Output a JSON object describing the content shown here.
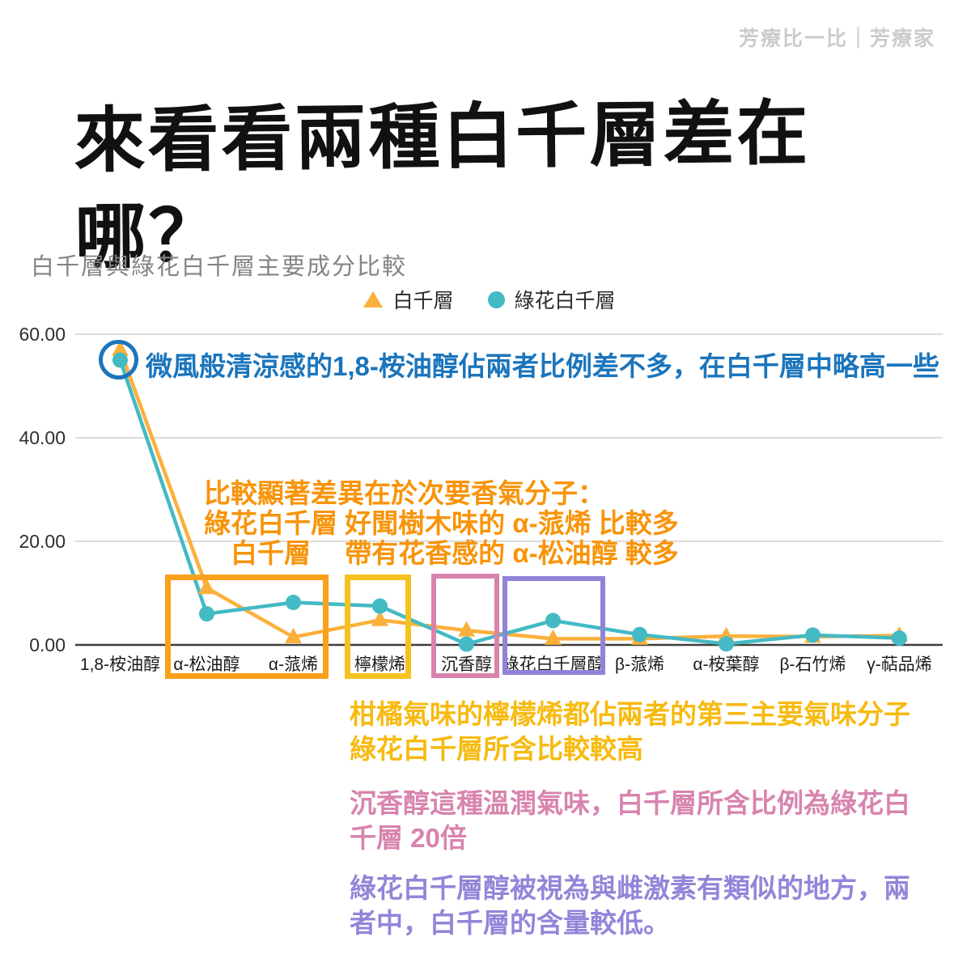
{
  "watermark": "芳療比一比｜芳療家",
  "main_title": "來看看兩種白千層差在哪？",
  "chart": {
    "title": "白千層與綠花白千層主要成分比較"
  },
  "chart_data": {
    "type": "line",
    "title": "白千層與綠花白千層主要成分比較",
    "categories": [
      "1,8-桉油醇",
      "α-松油醇",
      "α-蒎烯",
      "檸檬烯",
      "沉香醇",
      "綠花白千層醇",
      "β-蒎烯",
      "α-桉葉醇",
      "β-石竹烯",
      "γ-萜品烯"
    ],
    "series": [
      {
        "name": "白千層",
        "marker": "triangle",
        "color": "#FBB03B",
        "values": [
          57,
          11,
          1.5,
          4.8,
          2.8,
          1.2,
          1.2,
          1.7,
          1.6,
          1.8
        ]
      },
      {
        "name": "綠花白千層",
        "marker": "circle",
        "color": "#43BAC4",
        "values": [
          55,
          6,
          8.2,
          7.5,
          0.15,
          4.7,
          2,
          0.2,
          1.9,
          1.3
        ]
      }
    ],
    "xlabel": "",
    "ylabel": "",
    "ylim": [
      0,
      60
    ],
    "yticks": [
      0,
      20,
      40,
      60
    ],
    "ytick_labels": [
      "0.00",
      "20.00",
      "40.00",
      "60.00"
    ],
    "grid": true,
    "legend_position": "top"
  },
  "annotations": {
    "blue": {
      "color": "#1B75BC",
      "text": "微風般清涼感的1,8-桉油醇佔兩者比例差不多，在白千層中略高一些"
    },
    "orange": {
      "color": "#F8940A",
      "lines": [
        "比較顯著差異在於次要香氣分子：",
        "綠花白千層 好聞樹木味的 α-蒎烯 比較多",
        "　白千層　 帶有花香感的 α-松油醇 較多"
      ]
    },
    "yellow": {
      "color": "#F7BA10",
      "lines": [
        "柑橘氣味的檸檬烯都佔兩者的第三主要氣味分子",
        "綠花白千層所含比較較高"
      ]
    },
    "pink": {
      "color": "#D884AE",
      "lines": [
        "沉香醇這種溫潤氣味，白千層所含比例為綠花白",
        "千層 20倍"
      ]
    },
    "purple": {
      "color": "#9285D9",
      "lines": [
        "綠花白千層醇被視為與雌激素有類似的地方，兩",
        "者中，白千層的含量較低。"
      ]
    }
  },
  "highlight_boxes": [
    {
      "around": "α-松油醇 / α-蒎烯",
      "color": "#F9A11B"
    },
    {
      "around": "檸檬烯",
      "color": "#F6C21F"
    },
    {
      "around": "沉香醇",
      "color": "#D983AC"
    },
    {
      "around": "綠花白千層醇",
      "color": "#9184D8"
    }
  ]
}
